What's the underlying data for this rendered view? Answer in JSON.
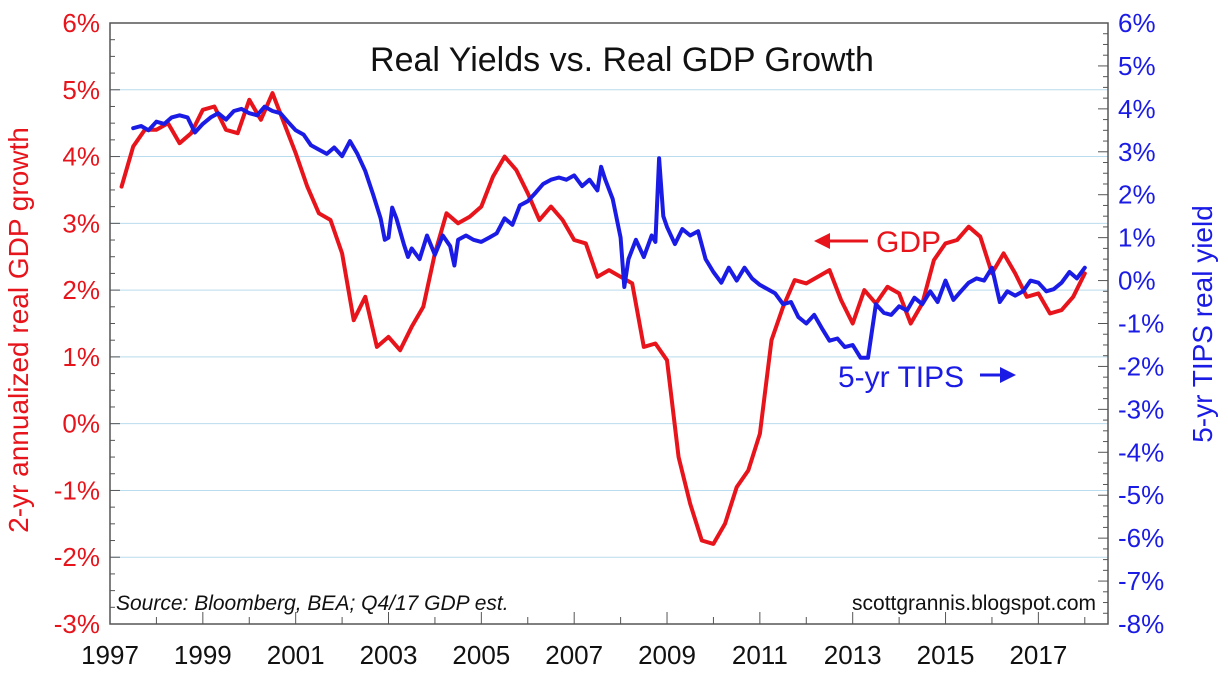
{
  "chart_data": {
    "type": "line",
    "title": "Real Yields vs. Real GDP Growth",
    "ylabel_left": "2-yr annualized real GDP growth",
    "ylabel_right": "5-yr TIPS real yield",
    "x_range": [
      1997,
      2018.5
    ],
    "x_ticks": [
      "1997",
      "1999",
      "2001",
      "2003",
      "2005",
      "2007",
      "2009",
      "2011",
      "2013",
      "2015",
      "2017"
    ],
    "y_left_range": [
      -3,
      6
    ],
    "y_left_ticks": [
      "6%",
      "5%",
      "4%",
      "3%",
      "2%",
      "1%",
      "0%",
      "-1%",
      "-2%",
      "-3%"
    ],
    "y_right_range": [
      -8,
      6
    ],
    "y_right_ticks": [
      "6%",
      "5%",
      "4%",
      "3%",
      "2%",
      "1%",
      "0%",
      "-1%",
      "-2%",
      "-3%",
      "-4%",
      "-5%",
      "-6%",
      "-7%",
      "-8%"
    ],
    "grid": "horizontal",
    "annotations": {
      "gdp": "GDP",
      "tips": "5-yr TIPS",
      "source": "Source: Bloomberg, BEA; Q4/17 GDP est.",
      "credit": "scottgrannis.blogspot.com"
    },
    "series": [
      {
        "name": "GDP",
        "axis": "left",
        "color": "#e8141b",
        "points": [
          [
            1997.25,
            3.55
          ],
          [
            1997.5,
            4.15
          ],
          [
            1997.75,
            4.4
          ],
          [
            1998.0,
            4.4
          ],
          [
            1998.25,
            4.5
          ],
          [
            1998.5,
            4.2
          ],
          [
            1998.75,
            4.35
          ],
          [
            1999.0,
            4.7
          ],
          [
            1999.25,
            4.75
          ],
          [
            1999.5,
            4.4
          ],
          [
            1999.75,
            4.35
          ],
          [
            2000.0,
            4.85
          ],
          [
            2000.25,
            4.55
          ],
          [
            2000.5,
            4.95
          ],
          [
            2000.75,
            4.5
          ],
          [
            2001.0,
            4.05
          ],
          [
            2001.25,
            3.55
          ],
          [
            2001.5,
            3.15
          ],
          [
            2001.75,
            3.05
          ],
          [
            2002.0,
            2.55
          ],
          [
            2002.25,
            1.55
          ],
          [
            2002.5,
            1.9
          ],
          [
            2002.75,
            1.15
          ],
          [
            2003.0,
            1.3
          ],
          [
            2003.25,
            1.1
          ],
          [
            2003.5,
            1.45
          ],
          [
            2003.75,
            1.75
          ],
          [
            2004.0,
            2.55
          ],
          [
            2004.25,
            3.15
          ],
          [
            2004.5,
            3.0
          ],
          [
            2004.75,
            3.1
          ],
          [
            2005.0,
            3.25
          ],
          [
            2005.25,
            3.7
          ],
          [
            2005.5,
            4.0
          ],
          [
            2005.75,
            3.8
          ],
          [
            2006.0,
            3.45
          ],
          [
            2006.25,
            3.05
          ],
          [
            2006.5,
            3.25
          ],
          [
            2006.75,
            3.05
          ],
          [
            2007.0,
            2.75
          ],
          [
            2007.25,
            2.7
          ],
          [
            2007.5,
            2.2
          ],
          [
            2007.75,
            2.3
          ],
          [
            2008.0,
            2.2
          ],
          [
            2008.25,
            2.1
          ],
          [
            2008.5,
            1.15
          ],
          [
            2008.75,
            1.2
          ],
          [
            2009.0,
            0.95
          ],
          [
            2009.25,
            -0.5
          ],
          [
            2009.5,
            -1.2
          ],
          [
            2009.75,
            -1.75
          ],
          [
            2010.0,
            -1.8
          ],
          [
            2010.25,
            -1.5
          ],
          [
            2010.5,
            -0.95
          ],
          [
            2010.75,
            -0.7
          ],
          [
            2011.0,
            -0.15
          ],
          [
            2011.25,
            1.25
          ],
          [
            2011.5,
            1.75
          ],
          [
            2011.75,
            2.15
          ],
          [
            2012.0,
            2.1
          ],
          [
            2012.25,
            2.2
          ],
          [
            2012.5,
            2.3
          ],
          [
            2012.75,
            1.85
          ],
          [
            2013.0,
            1.5
          ],
          [
            2013.25,
            2.0
          ],
          [
            2013.5,
            1.8
          ],
          [
            2013.75,
            2.05
          ],
          [
            2014.0,
            1.95
          ],
          [
            2014.25,
            1.5
          ],
          [
            2014.5,
            1.8
          ],
          [
            2014.75,
            2.45
          ],
          [
            2015.0,
            2.7
          ],
          [
            2015.25,
            2.75
          ],
          [
            2015.5,
            2.95
          ],
          [
            2015.75,
            2.8
          ],
          [
            2016.0,
            2.25
          ],
          [
            2016.25,
            2.55
          ],
          [
            2016.5,
            2.25
          ],
          [
            2016.75,
            1.9
          ],
          [
            2017.0,
            1.95
          ],
          [
            2017.25,
            1.65
          ],
          [
            2017.5,
            1.7
          ],
          [
            2017.75,
            1.9
          ],
          [
            2018.0,
            2.25
          ]
        ]
      },
      {
        "name": "5-yr TIPS",
        "axis": "right",
        "color": "#1b1be6",
        "points": [
          [
            1997.5,
            3.55
          ],
          [
            1997.67,
            3.6
          ],
          [
            1997.83,
            3.5
          ],
          [
            1998.0,
            3.7
          ],
          [
            1998.17,
            3.65
          ],
          [
            1998.33,
            3.8
          ],
          [
            1998.5,
            3.85
          ],
          [
            1998.67,
            3.8
          ],
          [
            1998.83,
            3.45
          ],
          [
            1999.0,
            3.65
          ],
          [
            1999.17,
            3.8
          ],
          [
            1999.33,
            3.9
          ],
          [
            1999.5,
            3.75
          ],
          [
            1999.67,
            3.95
          ],
          [
            1999.83,
            4.0
          ],
          [
            2000.0,
            3.9
          ],
          [
            2000.17,
            3.85
          ],
          [
            2000.33,
            4.05
          ],
          [
            2000.5,
            3.95
          ],
          [
            2000.67,
            3.9
          ],
          [
            2000.83,
            3.7
          ],
          [
            2001.0,
            3.5
          ],
          [
            2001.17,
            3.4
          ],
          [
            2001.33,
            3.15
          ],
          [
            2001.5,
            3.05
          ],
          [
            2001.67,
            2.95
          ],
          [
            2001.83,
            3.1
          ],
          [
            2002.0,
            2.9
          ],
          [
            2002.17,
            3.25
          ],
          [
            2002.33,
            2.95
          ],
          [
            2002.5,
            2.55
          ],
          [
            2002.67,
            2.0
          ],
          [
            2002.83,
            1.45
          ],
          [
            2002.92,
            0.95
          ],
          [
            2003.0,
            1.0
          ],
          [
            2003.08,
            1.7
          ],
          [
            2003.17,
            1.45
          ],
          [
            2003.33,
            0.85
          ],
          [
            2003.42,
            0.55
          ],
          [
            2003.5,
            0.75
          ],
          [
            2003.67,
            0.5
          ],
          [
            2003.83,
            1.05
          ],
          [
            2004.0,
            0.6
          ],
          [
            2004.17,
            1.05
          ],
          [
            2004.33,
            0.8
          ],
          [
            2004.42,
            0.35
          ],
          [
            2004.5,
            0.95
          ],
          [
            2004.67,
            1.05
          ],
          [
            2004.83,
            0.95
          ],
          [
            2005.0,
            0.9
          ],
          [
            2005.17,
            1.0
          ],
          [
            2005.33,
            1.1
          ],
          [
            2005.5,
            1.45
          ],
          [
            2005.67,
            1.3
          ],
          [
            2005.83,
            1.75
          ],
          [
            2006.0,
            1.85
          ],
          [
            2006.17,
            2.05
          ],
          [
            2006.33,
            2.25
          ],
          [
            2006.5,
            2.35
          ],
          [
            2006.67,
            2.4
          ],
          [
            2006.83,
            2.35
          ],
          [
            2007.0,
            2.45
          ],
          [
            2007.17,
            2.2
          ],
          [
            2007.33,
            2.35
          ],
          [
            2007.5,
            2.1
          ],
          [
            2007.58,
            2.65
          ],
          [
            2007.67,
            2.35
          ],
          [
            2007.83,
            1.9
          ],
          [
            2008.0,
            1.0
          ],
          [
            2008.08,
            -0.15
          ],
          [
            2008.17,
            0.5
          ],
          [
            2008.33,
            0.95
          ],
          [
            2008.5,
            0.55
          ],
          [
            2008.67,
            1.05
          ],
          [
            2008.75,
            0.9
          ],
          [
            2008.83,
            2.85
          ],
          [
            2008.92,
            1.5
          ],
          [
            2009.0,
            1.25
          ],
          [
            2009.17,
            0.85
          ],
          [
            2009.33,
            1.2
          ],
          [
            2009.5,
            1.05
          ],
          [
            2009.67,
            1.15
          ],
          [
            2009.83,
            0.5
          ],
          [
            2010.0,
            0.2
          ],
          [
            2010.17,
            -0.05
          ],
          [
            2010.33,
            0.3
          ],
          [
            2010.5,
            0.0
          ],
          [
            2010.67,
            0.3
          ],
          [
            2010.83,
            0.05
          ],
          [
            2011.0,
            -0.1
          ],
          [
            2011.17,
            -0.2
          ],
          [
            2011.33,
            -0.3
          ],
          [
            2011.5,
            -0.55
          ],
          [
            2011.67,
            -0.5
          ],
          [
            2011.83,
            -0.85
          ],
          [
            2012.0,
            -1.0
          ],
          [
            2012.17,
            -0.8
          ],
          [
            2012.33,
            -1.1
          ],
          [
            2012.5,
            -1.4
          ],
          [
            2012.67,
            -1.35
          ],
          [
            2012.83,
            -1.55
          ],
          [
            2013.0,
            -1.5
          ],
          [
            2013.17,
            -1.8
          ],
          [
            2013.33,
            -1.8
          ],
          [
            2013.5,
            -0.55
          ],
          [
            2013.67,
            -0.75
          ],
          [
            2013.83,
            -0.8
          ],
          [
            2014.0,
            -0.6
          ],
          [
            2014.17,
            -0.7
          ],
          [
            2014.33,
            -0.4
          ],
          [
            2014.5,
            -0.55
          ],
          [
            2014.67,
            -0.25
          ],
          [
            2014.83,
            -0.5
          ],
          [
            2015.0,
            0.0
          ],
          [
            2015.17,
            -0.45
          ],
          [
            2015.33,
            -0.25
          ],
          [
            2015.5,
            -0.05
          ],
          [
            2015.67,
            0.05
          ],
          [
            2015.83,
            0.0
          ],
          [
            2016.0,
            0.3
          ],
          [
            2016.17,
            -0.5
          ],
          [
            2016.33,
            -0.25
          ],
          [
            2016.5,
            -0.35
          ],
          [
            2016.67,
            -0.25
          ],
          [
            2016.83,
            0.0
          ],
          [
            2017.0,
            -0.05
          ],
          [
            2017.17,
            -0.25
          ],
          [
            2017.33,
            -0.2
          ],
          [
            2017.5,
            -0.05
          ],
          [
            2017.67,
            0.2
          ],
          [
            2017.83,
            0.05
          ],
          [
            2018.0,
            0.3
          ]
        ]
      }
    ]
  }
}
